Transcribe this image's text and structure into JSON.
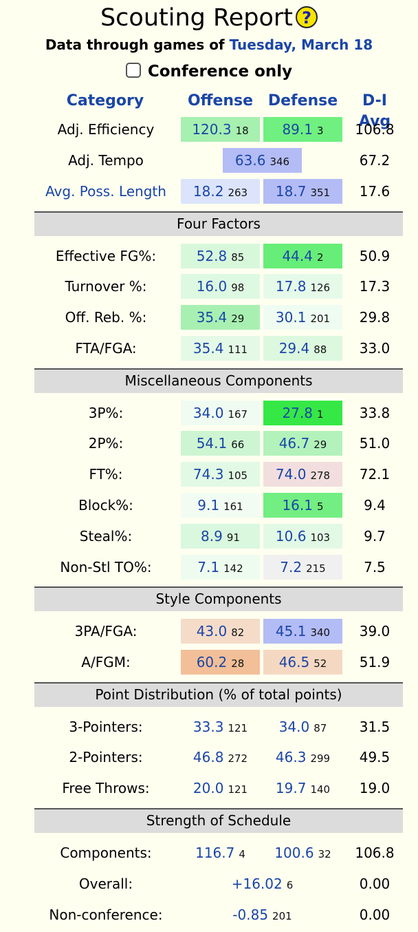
{
  "title": "Scouting Report",
  "help_icon_glyph": "?",
  "subtitle_prefix": "Data through games of",
  "subtitle_date": "Tuesday, March 18",
  "conference_only_label": "Conference only",
  "headers": {
    "category": "Category",
    "offense": "Offense",
    "defense": "Defense",
    "avg": "D-I Avg"
  },
  "top": {
    "efficiency": {
      "label": "Adj. Efficiency",
      "off_val": "120.3",
      "off_rank": "18",
      "def_val": "89.1",
      "def_rank": "3",
      "avg": "106.8",
      "off_color": "#a6f0b0",
      "def_color": "#6ff080"
    },
    "tempo": {
      "label": "Adj. Tempo",
      "val": "63.6",
      "rank": "346",
      "avg": "67.2",
      "color": "#b3bcf5"
    },
    "poss": {
      "label": "Avg. Poss. Length",
      "off_val": "18.2",
      "off_rank": "263",
      "def_val": "18.7",
      "def_rank": "351",
      "avg": "17.6",
      "off_color": "#dbe4fb",
      "def_color": "#b3bcf5"
    }
  },
  "four_factors": {
    "title": "Four Factors",
    "rows": [
      {
        "label": "Effective FG%:",
        "off_val": "52.8",
        "off_rank": "85",
        "def_val": "44.4",
        "def_rank": "2",
        "avg": "50.9",
        "off_color": "#d8f8dc",
        "def_color": "#67ee78"
      },
      {
        "label": "Turnover %:",
        "off_val": "16.0",
        "off_rank": "98",
        "def_val": "17.8",
        "def_rank": "126",
        "avg": "17.3",
        "off_color": "#def9e1",
        "def_color": "#e6faea"
      },
      {
        "label": "Off. Reb. %:",
        "off_val": "35.4",
        "off_rank": "29",
        "def_val": "30.1",
        "def_rank": "201",
        "avg": "29.8",
        "off_color": "#a8f0b2",
        "def_color": "#effcf1"
      },
      {
        "label": "FTA/FGA:",
        "off_val": "35.4",
        "off_rank": "111",
        "def_val": "29.4",
        "def_rank": "88",
        "avg": "33.0",
        "off_color": "#e4f9e6",
        "def_color": "#dcf8df"
      }
    ]
  },
  "misc": {
    "title": "Miscellaneous Components",
    "rows": [
      {
        "label": "3P%:",
        "off_val": "34.0",
        "off_rank": "167",
        "def_val": "27.8",
        "def_rank": "1",
        "avg": "33.8",
        "off_color": "#f0fcf2",
        "def_color": "#35e846"
      },
      {
        "label": "2P%:",
        "off_val": "54.1",
        "off_rank": "66",
        "def_val": "46.7",
        "def_rank": "29",
        "avg": "51.0",
        "off_color": "#cdf5d2",
        "def_color": "#b3f2bb"
      },
      {
        "label": "FT%:",
        "off_val": "74.3",
        "off_rank": "105",
        "def_val": "74.0",
        "def_rank": "278",
        "avg": "72.1",
        "off_color": "#e2f9e5",
        "def_color": "#f2dede"
      },
      {
        "label": "Block%:",
        "off_val": "9.1",
        "off_rank": "161",
        "def_val": "16.1",
        "def_rank": "5",
        "avg": "9.4",
        "off_color": "#f2fcf3",
        "def_color": "#72ee82"
      },
      {
        "label": "Steal%:",
        "off_val": "8.9",
        "off_rank": "91",
        "def_val": "10.6",
        "def_rank": "103",
        "avg": "9.7",
        "off_color": "#d9f8dd",
        "def_color": "#e2f9e5"
      },
      {
        "label": "Non-Stl TO%:",
        "off_val": "7.1",
        "off_rank": "142",
        "def_val": "7.2",
        "def_rank": "215",
        "avg": "7.5",
        "off_color": "#eefcf0",
        "def_color": "#f0f0f0"
      }
    ]
  },
  "style": {
    "title": "Style Components",
    "rows": [
      {
        "label": "3PA/FGA:",
        "off_val": "43.0",
        "off_rank": "82",
        "def_val": "45.1",
        "def_rank": "340",
        "avg": "39.0",
        "off_color": "#f5dcc8",
        "def_color": "#b3bcf5"
      },
      {
        "label": "A/FGM:",
        "off_val": "60.2",
        "off_rank": "28",
        "def_val": "46.5",
        "def_rank": "52",
        "avg": "51.9",
        "off_color": "#f2bf98",
        "def_color": "#f5d8c2"
      }
    ]
  },
  "points": {
    "title": "Point Distribution (% of total points)",
    "rows": [
      {
        "label": "3-Pointers:",
        "off_val": "33.3",
        "off_rank": "121",
        "def_val": "34.0",
        "def_rank": "87",
        "avg": "31.5"
      },
      {
        "label": "2-Pointers:",
        "off_val": "46.8",
        "off_rank": "272",
        "def_val": "46.3",
        "def_rank": "299",
        "avg": "49.5"
      },
      {
        "label": "Free Throws:",
        "off_val": "20.0",
        "off_rank": "121",
        "def_val": "19.7",
        "def_rank": "140",
        "avg": "19.0"
      }
    ]
  },
  "sos": {
    "title": "Strength of Schedule",
    "components": {
      "label": "Components:",
      "off_val": "116.7",
      "off_rank": "4",
      "def_val": "100.6",
      "def_rank": "32",
      "avg": "106.8"
    },
    "overall": {
      "label": "Overall:",
      "val": "+16.02",
      "rank": "6",
      "avg": "0.00"
    },
    "nonconf": {
      "label": "Non-conference:",
      "val": "-0.85",
      "rank": "201",
      "avg": "0.00"
    }
  }
}
